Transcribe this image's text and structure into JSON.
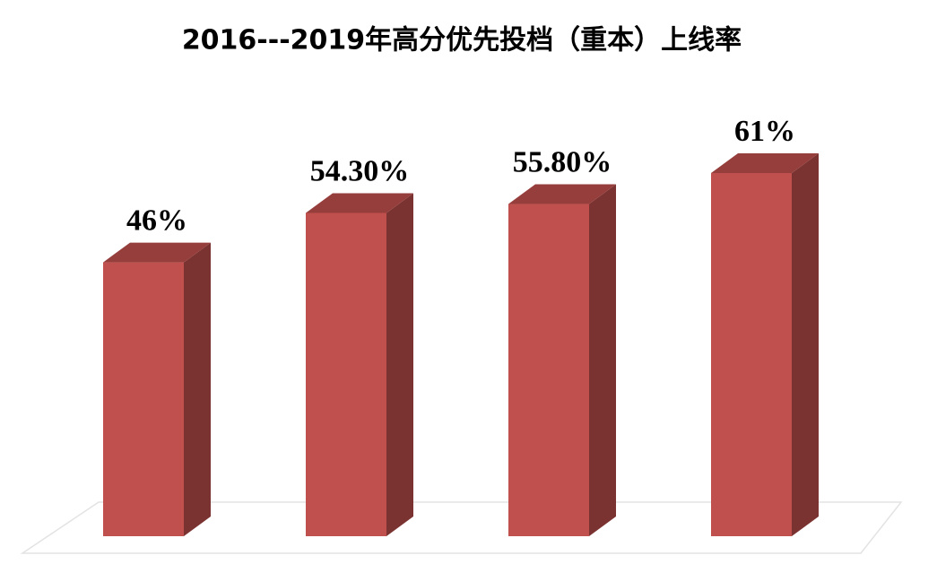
{
  "chart_data": {
    "type": "bar3d",
    "title": "2016---2019年高分优先投档（重本）上线率",
    "categories": [
      null,
      null,
      null,
      null
    ],
    "values": [
      46,
      54.3,
      55.8,
      61
    ],
    "value_labels": [
      "46%",
      "54.30%",
      "55.80%",
      "61%"
    ],
    "color": "#c0504d"
  }
}
